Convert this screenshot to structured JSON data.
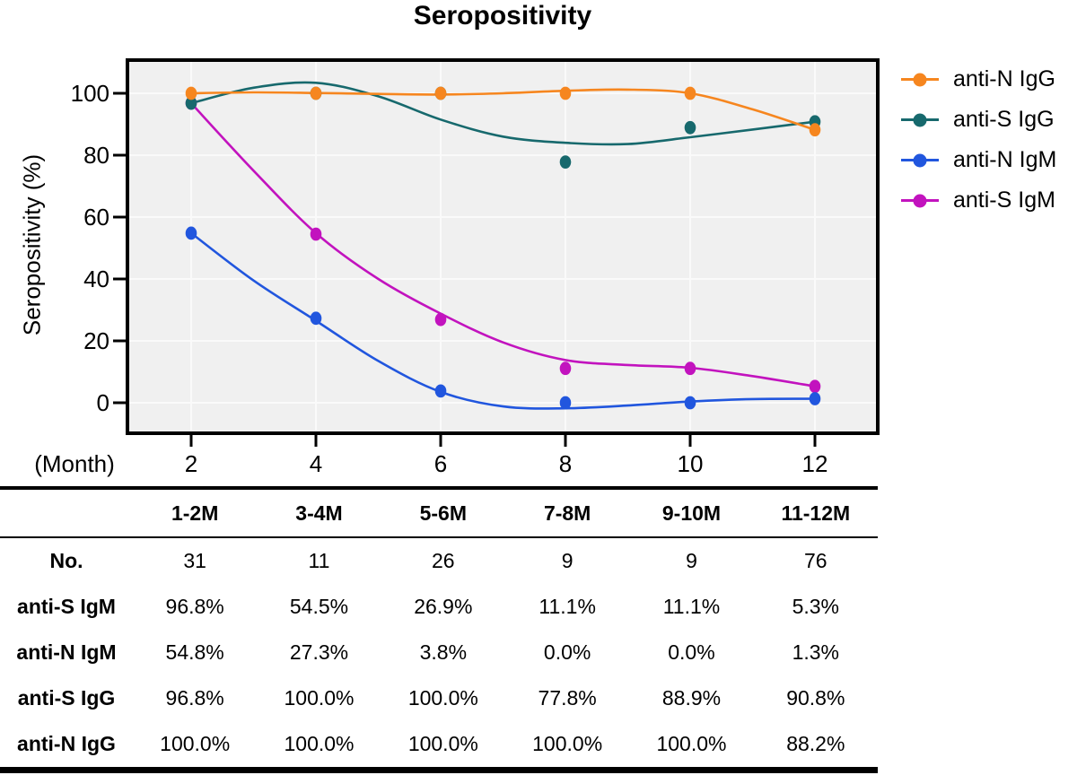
{
  "chart_data": {
    "type": "line",
    "title": "Seropositivity",
    "ylabel": "Seropositivity (%)",
    "xlabel": "(Month)",
    "x": [
      2,
      4,
      6,
      8,
      10,
      12
    ],
    "y_ticks": [
      0,
      20,
      40,
      60,
      80,
      100
    ],
    "ylim": [
      -10,
      111
    ],
    "grid": true,
    "legend_position": "right",
    "series": [
      {
        "name": "anti-N IgG",
        "color": "#F6861F",
        "values": [
          100,
          100,
          100,
          100,
          100,
          88.2
        ],
        "curve": [
          [
            2,
            100
          ],
          [
            3,
            100.3
          ],
          [
            4,
            100.1
          ],
          [
            5,
            99.8
          ],
          [
            6,
            99.6
          ],
          [
            7,
            100
          ],
          [
            8,
            100.8
          ],
          [
            9,
            101.2
          ],
          [
            10,
            100
          ],
          [
            11,
            94.8
          ],
          [
            12,
            88.2
          ]
        ]
      },
      {
        "name": "anti-S IgG",
        "color": "#17696D",
        "values": [
          96.8,
          100,
          100,
          77.8,
          88.9,
          90.8
        ],
        "curve": [
          [
            2,
            96.8
          ],
          [
            3,
            101.8
          ],
          [
            4,
            103.4
          ],
          [
            5,
            99
          ],
          [
            6,
            91.5
          ],
          [
            7,
            86
          ],
          [
            8,
            84
          ],
          [
            9,
            83.6
          ],
          [
            10,
            85.8
          ],
          [
            11,
            88.3
          ],
          [
            12,
            90.8
          ]
        ]
      },
      {
        "name": "anti-N IgM",
        "color": "#2156DE",
        "values": [
          54.8,
          27.3,
          3.8,
          0,
          0,
          1.3
        ],
        "curve": [
          [
            2,
            54.8
          ],
          [
            3,
            39.5
          ],
          [
            4,
            26.5
          ],
          [
            5,
            13.5
          ],
          [
            6,
            3.5
          ],
          [
            7,
            -1.2
          ],
          [
            8,
            -1.8
          ],
          [
            9,
            -0.9
          ],
          [
            10,
            0.4
          ],
          [
            11,
            1.2
          ],
          [
            12,
            1.3
          ]
        ]
      },
      {
        "name": "anti-S IgM",
        "color": "#C213BE",
        "values": [
          96.8,
          54.5,
          26.9,
          11.1,
          11.1,
          5.3
        ],
        "curve": [
          [
            2,
            96.8
          ],
          [
            3,
            75
          ],
          [
            4,
            54.8
          ],
          [
            5,
            40
          ],
          [
            6,
            28.8
          ],
          [
            7,
            19.5
          ],
          [
            8,
            13.8
          ],
          [
            9,
            12.2
          ],
          [
            10,
            11.3
          ],
          [
            11,
            8.6
          ],
          [
            12,
            5.3
          ]
        ]
      }
    ]
  },
  "table": {
    "col_headers": [
      "1-2M",
      "3-4M",
      "5-6M",
      "7-8M",
      "9-10M",
      "11-12M"
    ],
    "rows": [
      {
        "label": "No.",
        "values": [
          "31",
          "11",
          "26",
          "9",
          "9",
          "76"
        ]
      },
      {
        "label": "anti-S IgM",
        "values": [
          "96.8%",
          "54.5%",
          "26.9%",
          "11.1%",
          "11.1%",
          "5.3%"
        ]
      },
      {
        "label": "anti-N IgM",
        "values": [
          "54.8%",
          "27.3%",
          "3.8%",
          "0.0%",
          "0.0%",
          "1.3%"
        ]
      },
      {
        "label": "anti-S IgG",
        "values": [
          "96.8%",
          "100.0%",
          "100.0%",
          "77.8%",
          "88.9%",
          "90.8%"
        ]
      },
      {
        "label": "anti-N IgG",
        "values": [
          "100.0%",
          "100.0%",
          "100.0%",
          "100.0%",
          "100.0%",
          "88.2%"
        ]
      }
    ]
  },
  "colors": {
    "plot_bg": "#F0F0F0",
    "grid": "#FAFAFA",
    "frame": "#000000"
  }
}
